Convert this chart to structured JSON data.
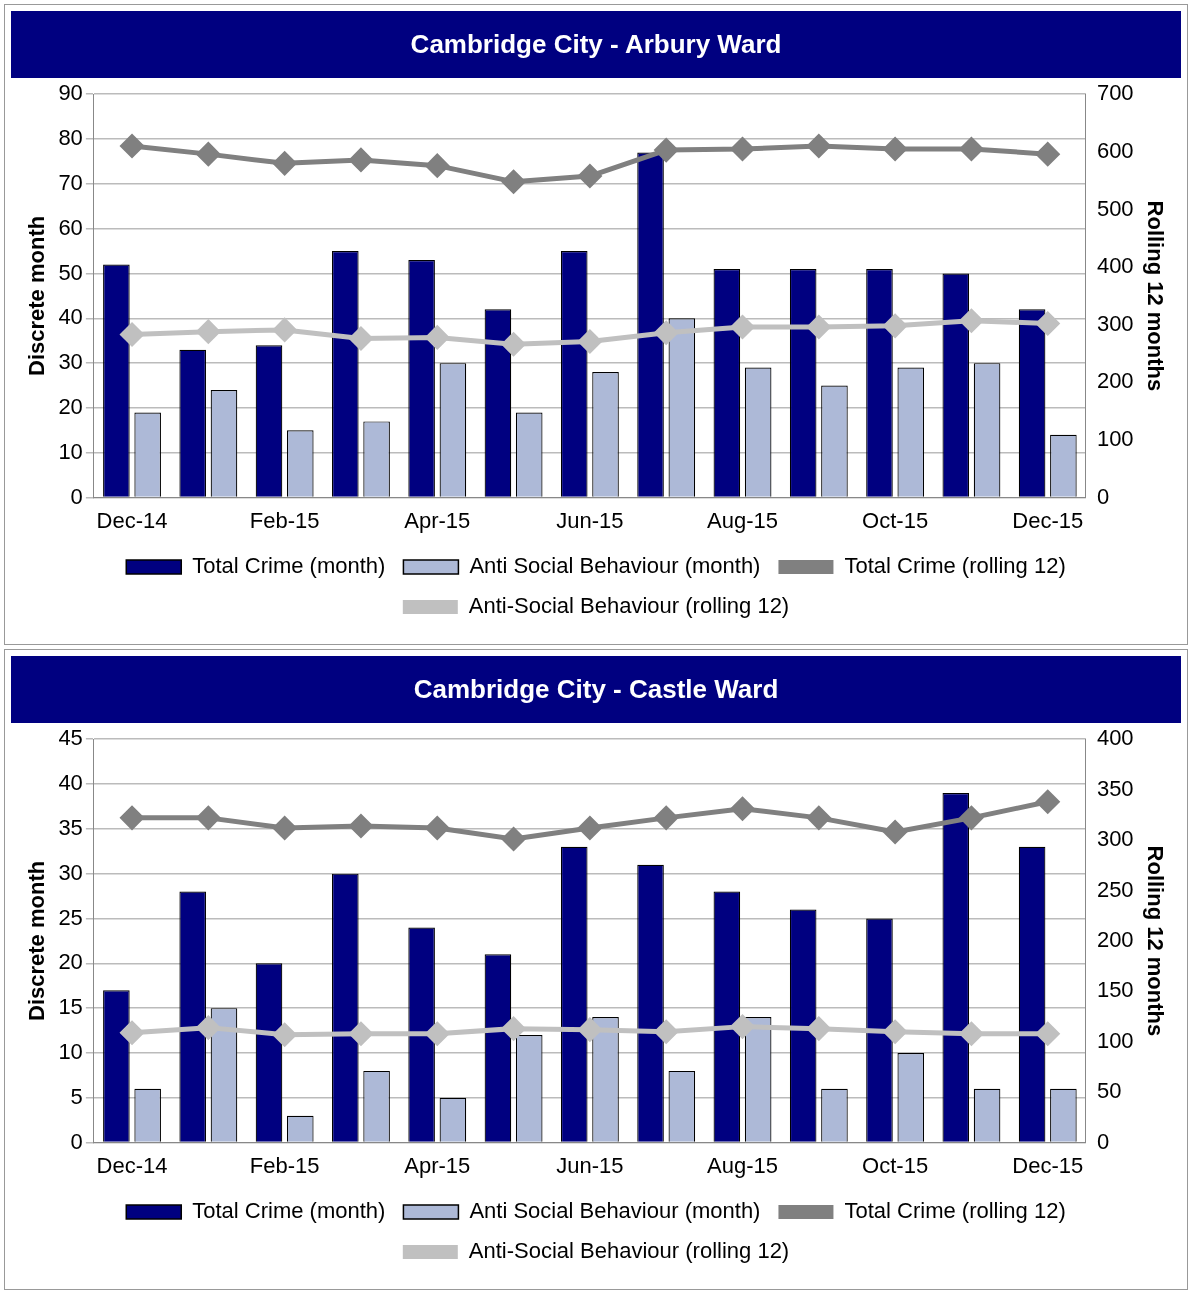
{
  "chart_data": [
    {
      "type": "bar",
      "title": "Cambridge City - Arbury Ward",
      "ylabel": "Discrete month",
      "y2label": "Rolling 12 months",
      "categories": [
        "Dec-14",
        null,
        "Feb-15",
        null,
        "Apr-15",
        null,
        "Jun-15",
        null,
        "Aug-15",
        null,
        "Oct-15",
        null,
        "Dec-15"
      ],
      "series": [
        {
          "name": "Total Crime (month)",
          "color": "#000080",
          "values": [
            52,
            33,
            34,
            55,
            53,
            42,
            55,
            77,
            51,
            51,
            51,
            50,
            42
          ]
        },
        {
          "name": "Anti Social Behaviour (month)",
          "color": "#adb9d7",
          "values": [
            19,
            24,
            15,
            17,
            30,
            19,
            28,
            40,
            29,
            25,
            29,
            30,
            14
          ]
        },
        {
          "name": "Total Crime (rolling 12)",
          "type": "line",
          "axis": "y2",
          "color": "#808080",
          "values": [
            610,
            596,
            580,
            586,
            576,
            548,
            558,
            603,
            605,
            610,
            605,
            605,
            596
          ]
        },
        {
          "name": "Anti-Social Behaviour (rolling 12)",
          "type": "line",
          "axis": "y2",
          "color": "#c0c0c0",
          "values": [
            283,
            288,
            291,
            276,
            278,
            266,
            271,
            286,
            296,
            296,
            298,
            307,
            302
          ]
        }
      ],
      "ylim": [
        0,
        90
      ],
      "yticks": [
        0,
        10,
        20,
        30,
        40,
        50,
        60,
        70,
        80,
        90
      ],
      "y2lim": [
        0,
        700
      ],
      "y2ticks": [
        0,
        100,
        200,
        300,
        400,
        500,
        600,
        700
      ],
      "grid": "y",
      "legend": "bottom",
      "marker": "diamond"
    },
    {
      "type": "bar",
      "title": "Cambridge City - Castle Ward",
      "ylabel": "Discrete month",
      "y2label": "Rolling 12 months",
      "categories": [
        "Dec-14",
        null,
        "Feb-15",
        null,
        "Apr-15",
        null,
        "Jun-15",
        null,
        "Aug-15",
        null,
        "Oct-15",
        null,
        "Dec-15"
      ],
      "series": [
        {
          "name": "Total Crime (month)",
          "color": "#000080",
          "values": [
            17,
            28,
            20,
            30,
            24,
            21,
            33,
            31,
            28,
            26,
            25,
            39,
            33
          ]
        },
        {
          "name": "Anti Social Behaviour (month)",
          "color": "#adb9d7",
          "values": [
            6,
            15,
            3,
            8,
            5,
            12,
            14,
            8,
            14,
            6,
            10,
            6,
            6
          ]
        },
        {
          "name": "Total Crime (rolling 12)",
          "type": "line",
          "axis": "y2",
          "color": "#808080",
          "values": [
            322,
            322,
            312,
            314,
            312,
            301,
            312,
            322,
            331,
            322,
            308,
            322,
            338
          ]
        },
        {
          "name": "Anti-Social Behaviour (rolling 12)",
          "type": "line",
          "axis": "y2",
          "color": "#c0c0c0",
          "values": [
            109,
            114,
            107,
            108,
            108,
            113,
            112,
            110,
            115,
            113,
            110,
            108,
            108
          ]
        }
      ],
      "ylim": [
        0,
        45
      ],
      "yticks": [
        0,
        5,
        10,
        15,
        20,
        25,
        30,
        35,
        40,
        45
      ],
      "y2lim": [
        0,
        400
      ],
      "y2ticks": [
        0,
        50,
        100,
        150,
        200,
        250,
        300,
        350,
        400
      ],
      "grid": "y",
      "legend": "bottom",
      "marker": "diamond"
    }
  ]
}
